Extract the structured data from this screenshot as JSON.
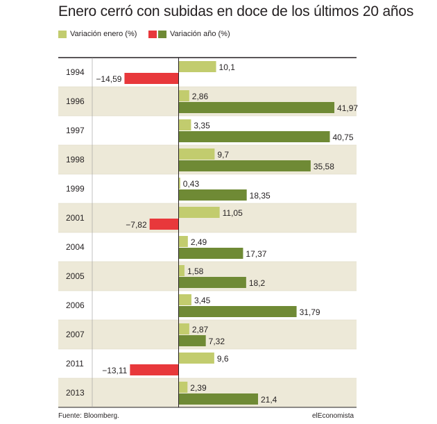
{
  "chart_data": {
    "type": "bar",
    "orientation": "horizontal",
    "title": "Enero cerró con subidas en doce de los últimos 20 años",
    "legend": [
      {
        "label": "Variación enero (%)",
        "colors": [
          "#c2cc6e"
        ]
      },
      {
        "label": "Variación año (%)",
        "colors": [
          "#e8383b",
          "#6f8a35"
        ]
      }
    ],
    "categories": [
      "1994",
      "1996",
      "1997",
      "1998",
      "1999",
      "2001",
      "2004",
      "2005",
      "2006",
      "2007",
      "2011",
      "2013"
    ],
    "series": [
      {
        "name": "Variación enero (%)",
        "values": [
          10.1,
          2.86,
          3.35,
          9.7,
          0.43,
          11.05,
          2.49,
          1.58,
          3.45,
          2.87,
          9.6,
          2.39
        ],
        "labels": [
          "10,1",
          "2,86",
          "3,35",
          "9,7",
          "0,43",
          "11,05",
          "2,49",
          "1,58",
          "3,45",
          "2,87",
          "9,6",
          "2,39"
        ]
      },
      {
        "name": "Variación año (%)",
        "values": [
          -14.59,
          41.97,
          40.75,
          35.58,
          18.35,
          -7.82,
          17.37,
          18.2,
          31.79,
          7.32,
          -13.11,
          21.4
        ],
        "labels": [
          "−14,59",
          "41,97",
          "40,75",
          "35,58",
          "18,35",
          "−7,82",
          "17,37",
          "18,2",
          "31,79",
          "7,32",
          "−13,11",
          "21,4"
        ]
      }
    ],
    "xlim": [
      -15,
      45
    ],
    "colors": {
      "enero": "#c2cc6e",
      "year_positive": "#6f8a35",
      "year_negative": "#e8383b",
      "band": "#ede9d8",
      "rule": "#231f20"
    }
  },
  "footer": {
    "source": "Fuente: Bloomberg.",
    "brand": "elEconomista"
  }
}
